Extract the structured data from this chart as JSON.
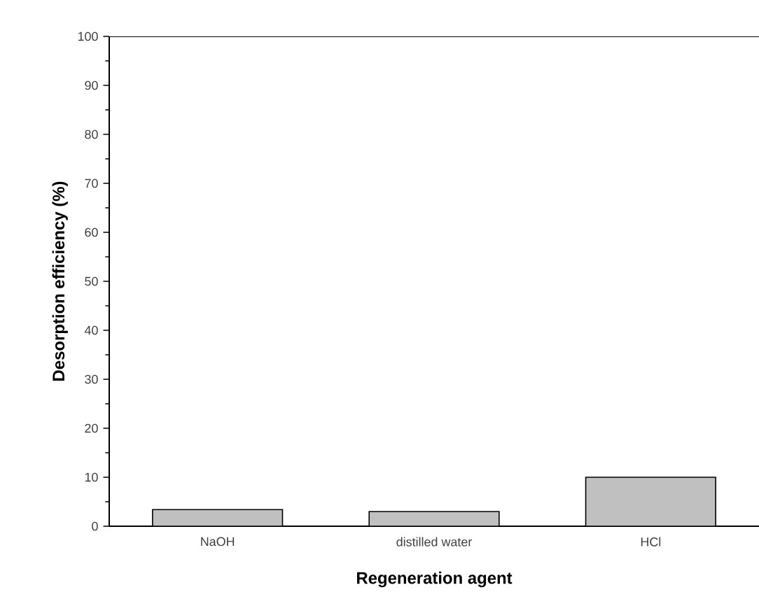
{
  "chart_data": {
    "type": "bar",
    "xlabel": "Regeneration agent",
    "ylabel": "Desorption efficiency (%)",
    "categories": [
      "NaOH",
      "distilled water",
      "HCl"
    ],
    "values": [
      3.4,
      3.0,
      10
    ],
    "color": "#c0c0c0",
    "ylim": [
      0,
      100
    ],
    "yticks": [
      0,
      10,
      20,
      30,
      40,
      50,
      60,
      70,
      80,
      90,
      100
    ]
  }
}
